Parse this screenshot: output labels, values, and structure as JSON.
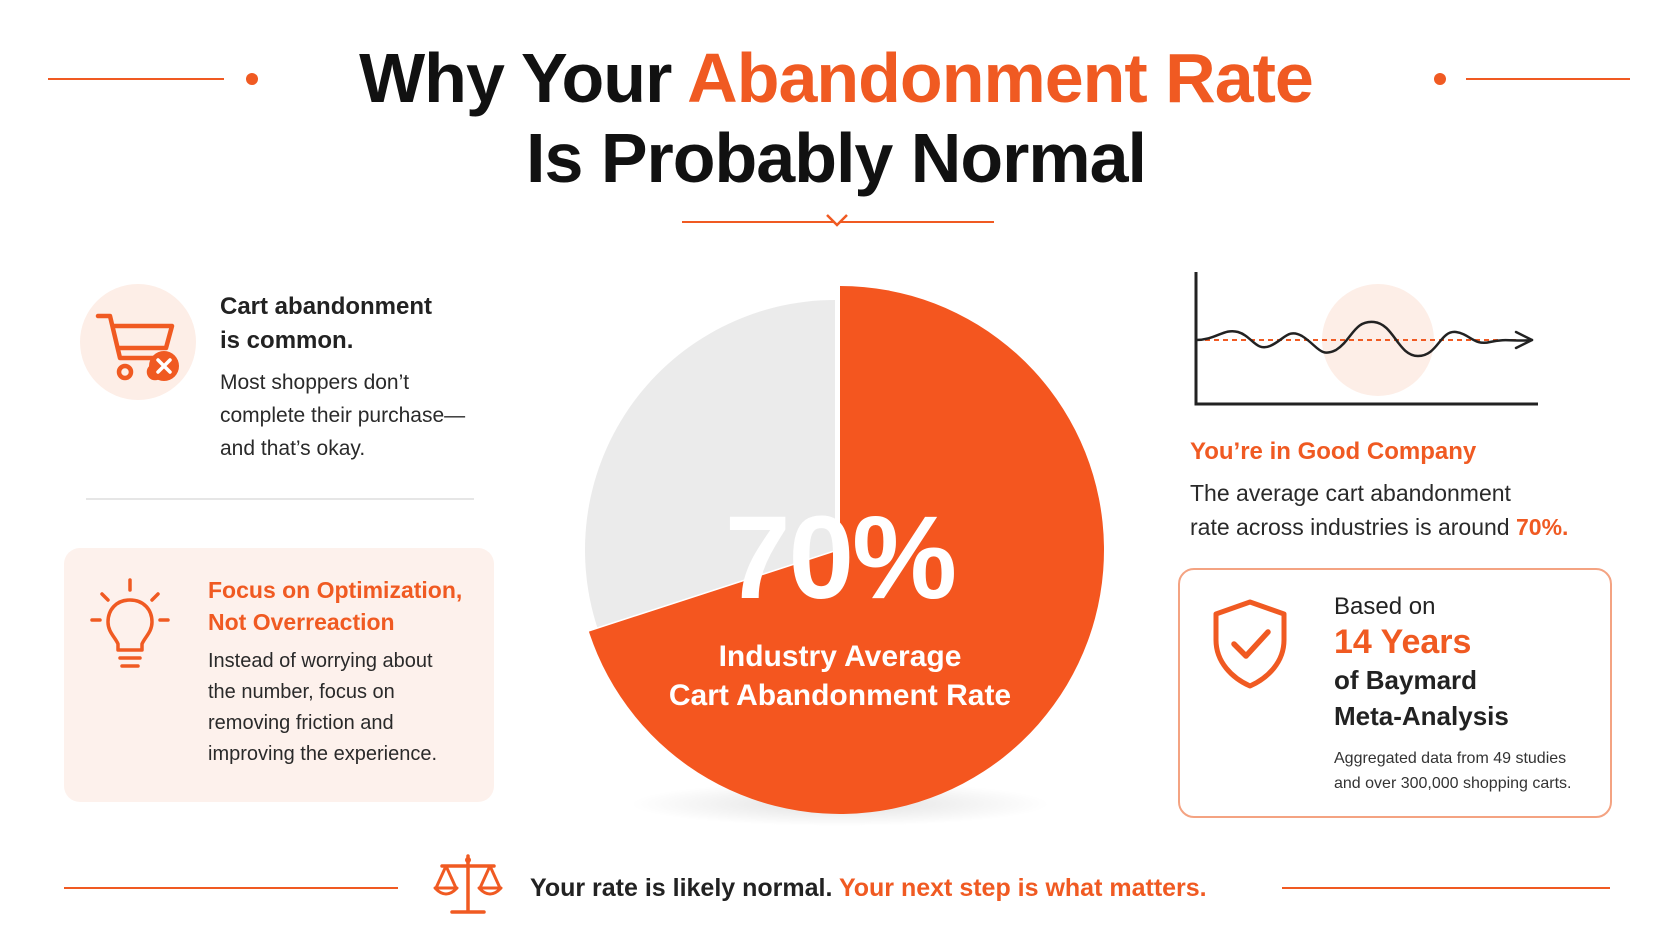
{
  "header": {
    "title_line1_prefix": "Why Your",
    "title_line1_accent": "Abandonment Rate",
    "title_line2": "Is Probably Normal"
  },
  "left": {
    "common": {
      "heading_line1": "Cart abandonment",
      "heading_line2": "is common.",
      "body_line1": "Most shoppers don’t",
      "body_line2": "complete their purchase—",
      "body_line3": "and that’s okay.",
      "icon": "shopping-cart-x-icon"
    },
    "focus": {
      "heading_line1": "Focus on Optimization,",
      "heading_line2": "Not Overreaction",
      "body_line1": "Instead of worrying about",
      "body_line2": "the number, focus on",
      "body_line3": "removing friction and",
      "body_line4": "improving the experience.",
      "icon": "lightbulb-icon"
    }
  },
  "chart_data": {
    "type": "pie",
    "title": "",
    "slices": [
      {
        "label": "Industry Average Cart Abandonment Rate",
        "value": 70,
        "color": "#f4561f"
      },
      {
        "label": "",
        "value": 30,
        "color": "#ebebeb"
      }
    ],
    "value_label": "70%",
    "caption_line1": "Industry Average",
    "caption_line2": "Cart Abandonment Rate"
  },
  "right": {
    "company": {
      "heading": "You’re in Good Company",
      "body_line1": "The average cart abandonment",
      "body_line2_prefix": "rate across industries is around",
      "body_line2_accent": "70%",
      "body_line2_suffix": ".",
      "icon": "trend-line-icon"
    },
    "baymard": {
      "pre": "Based on",
      "big": "14 Years",
      "sub_line1": "of Baymard",
      "sub_line2": "Meta-Analysis",
      "note_line1": "Aggregated data from 49 studies",
      "note_line2": "and over 300,000 shopping carts.",
      "icon": "shield-check-icon"
    }
  },
  "footer": {
    "text_prefix": "Your rate is likely normal.",
    "text_accent": "Your next step is what matters.",
    "icon": "balance-scale-icon"
  },
  "colors": {
    "accent": "#f05a22",
    "pie_main": "#f4561f",
    "pie_rest": "#ebebeb",
    "soft_bg": "#fdf1ec"
  }
}
